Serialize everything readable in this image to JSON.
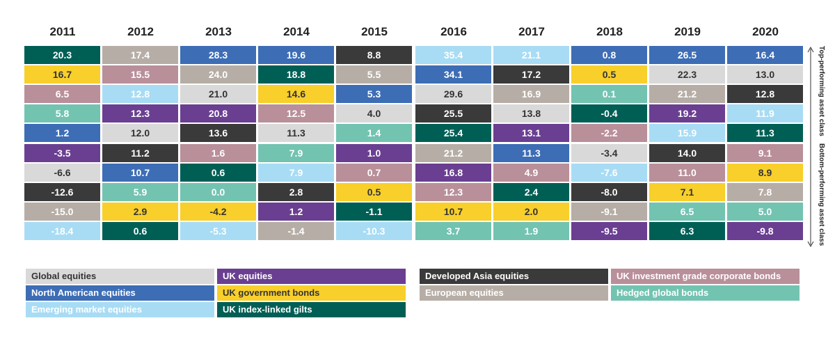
{
  "chart_data": {
    "type": "table",
    "years": [
      "2011",
      "2012",
      "2013",
      "2014",
      "2015",
      "2016",
      "2017",
      "2018",
      "2019",
      "2020"
    ],
    "asset_classes": [
      {
        "key": "GE",
        "name": "Global equities",
        "color": "#d9d9d9"
      },
      {
        "key": "NA",
        "name": "North American equities",
        "color": "#3d6db5"
      },
      {
        "key": "EM",
        "name": "Emerging market equities",
        "color": "#a8dcf4"
      },
      {
        "key": "UKE",
        "name": "UK equities",
        "color": "#6a3f91"
      },
      {
        "key": "UKGB",
        "name": "UK government bonds",
        "color": "#f8cf2b"
      },
      {
        "key": "UKIL",
        "name": "UK index-linked gilts",
        "color": "#005f55"
      },
      {
        "key": "DA",
        "name": "Developed Asia equities",
        "color": "#3a3a3a"
      },
      {
        "key": "EU",
        "name": "European equities",
        "color": "#b6aea6"
      },
      {
        "key": "UKIG",
        "name": "UK investment grade corporate bonds",
        "color": "#b98f9a"
      },
      {
        "key": "HGB",
        "name": "Hedged global bonds",
        "color": "#73c3b1"
      }
    ],
    "columns": [
      [
        {
          "a": "UKIL",
          "v": "20.3"
        },
        {
          "a": "UKGB",
          "v": "16.7"
        },
        {
          "a": "UKIG",
          "v": "6.5"
        },
        {
          "a": "HGB",
          "v": "5.8"
        },
        {
          "a": "NA",
          "v": "1.2"
        },
        {
          "a": "UKE",
          "v": "-3.5"
        },
        {
          "a": "GE",
          "v": "-6.6"
        },
        {
          "a": "DA",
          "v": "-12.6"
        },
        {
          "a": "EU",
          "v": "-15.0"
        },
        {
          "a": "EM",
          "v": "-18.4"
        }
      ],
      [
        {
          "a": "EU",
          "v": "17.4"
        },
        {
          "a": "UKIG",
          "v": "15.5"
        },
        {
          "a": "EM",
          "v": "12.8"
        },
        {
          "a": "UKE",
          "v": "12.3"
        },
        {
          "a": "GE",
          "v": "12.0"
        },
        {
          "a": "DA",
          "v": "11.2"
        },
        {
          "a": "NA",
          "v": "10.7"
        },
        {
          "a": "HGB",
          "v": "5.9"
        },
        {
          "a": "UKGB",
          "v": "2.9"
        },
        {
          "a": "UKIL",
          "v": "0.6"
        }
      ],
      [
        {
          "a": "NA",
          "v": "28.3"
        },
        {
          "a": "EU",
          "v": "24.0"
        },
        {
          "a": "GE",
          "v": "21.0"
        },
        {
          "a": "UKE",
          "v": "20.8"
        },
        {
          "a": "DA",
          "v": "13.6"
        },
        {
          "a": "UKIG",
          "v": "1.6"
        },
        {
          "a": "UKIL",
          "v": "0.6"
        },
        {
          "a": "HGB",
          "v": "0.0"
        },
        {
          "a": "UKGB",
          "v": "-4.2"
        },
        {
          "a": "EM",
          "v": "-5.3"
        }
      ],
      [
        {
          "a": "NA",
          "v": "19.6"
        },
        {
          "a": "UKIL",
          "v": "18.8"
        },
        {
          "a": "UKGB",
          "v": "14.6"
        },
        {
          "a": "UKIG",
          "v": "12.5"
        },
        {
          "a": "GE",
          "v": "11.3"
        },
        {
          "a": "HGB",
          "v": "7.9"
        },
        {
          "a": "EM",
          "v": "7.9"
        },
        {
          "a": "DA",
          "v": "2.8"
        },
        {
          "a": "UKE",
          "v": "1.2"
        },
        {
          "a": "EU",
          "v": "-1.4"
        }
      ],
      [
        {
          "a": "DA",
          "v": "8.8"
        },
        {
          "a": "EU",
          "v": "5.5"
        },
        {
          "a": "NA",
          "v": "5.3"
        },
        {
          "a": "GE",
          "v": "4.0"
        },
        {
          "a": "HGB",
          "v": "1.4"
        },
        {
          "a": "UKE",
          "v": "1.0"
        },
        {
          "a": "UKIG",
          "v": "0.7"
        },
        {
          "a": "UKGB",
          "v": "0.5"
        },
        {
          "a": "UKIL",
          "v": "-1.1"
        },
        {
          "a": "EM",
          "v": "-10.3"
        }
      ],
      [
        {
          "a": "EM",
          "v": "35.4"
        },
        {
          "a": "NA",
          "v": "34.1"
        },
        {
          "a": "GE",
          "v": "29.6"
        },
        {
          "a": "DA",
          "v": "25.5"
        },
        {
          "a": "UKIL",
          "v": "25.4"
        },
        {
          "a": "EU",
          "v": "21.2"
        },
        {
          "a": "UKE",
          "v": "16.8"
        },
        {
          "a": "UKIG",
          "v": "12.3"
        },
        {
          "a": "UKGB",
          "v": "10.7"
        },
        {
          "a": "HGB",
          "v": "3.7"
        }
      ],
      [
        {
          "a": "EM",
          "v": "21.1"
        },
        {
          "a": "DA",
          "v": "17.2"
        },
        {
          "a": "EU",
          "v": "16.9"
        },
        {
          "a": "GE",
          "v": "13.8"
        },
        {
          "a": "UKE",
          "v": "13.1"
        },
        {
          "a": "NA",
          "v": "11.3"
        },
        {
          "a": "UKIG",
          "v": "4.9"
        },
        {
          "a": "UKIL",
          "v": "2.4"
        },
        {
          "a": "UKGB",
          "v": "2.0"
        },
        {
          "a": "HGB",
          "v": "1.9"
        }
      ],
      [
        {
          "a": "NA",
          "v": "0.8"
        },
        {
          "a": "UKGB",
          "v": "0.5"
        },
        {
          "a": "HGB",
          "v": "0.1"
        },
        {
          "a": "UKIL",
          "v": "-0.4"
        },
        {
          "a": "UKIG",
          "v": "-2.2"
        },
        {
          "a": "GE",
          "v": "-3.4"
        },
        {
          "a": "EM",
          "v": "-7.6"
        },
        {
          "a": "DA",
          "v": "-8.0"
        },
        {
          "a": "EU",
          "v": "-9.1"
        },
        {
          "a": "UKE",
          "v": "-9.5"
        }
      ],
      [
        {
          "a": "NA",
          "v": "26.5"
        },
        {
          "a": "GE",
          "v": "22.3"
        },
        {
          "a": "EU",
          "v": "21.2"
        },
        {
          "a": "UKE",
          "v": "19.2"
        },
        {
          "a": "EM",
          "v": "15.9"
        },
        {
          "a": "DA",
          "v": "14.0"
        },
        {
          "a": "UKIG",
          "v": "11.0"
        },
        {
          "a": "UKGB",
          "v": "7.1"
        },
        {
          "a": "HGB",
          "v": "6.5"
        },
        {
          "a": "UKIL",
          "v": "6.3"
        }
      ],
      [
        {
          "a": "NA",
          "v": "16.4"
        },
        {
          "a": "GE",
          "v": "13.0"
        },
        {
          "a": "DA",
          "v": "12.8"
        },
        {
          "a": "EM",
          "v": "11.9"
        },
        {
          "a": "UKIL",
          "v": "11.3"
        },
        {
          "a": "UKIG",
          "v": "9.1"
        },
        {
          "a": "UKGB",
          "v": "8.9"
        },
        {
          "a": "EU",
          "v": "7.8"
        },
        {
          "a": "HGB",
          "v": "5.0"
        },
        {
          "a": "UKE",
          "v": "-9.8"
        }
      ]
    ],
    "side_labels": {
      "top": "Top-performing asset class",
      "bottom": "Bottom-performing asset class"
    }
  }
}
